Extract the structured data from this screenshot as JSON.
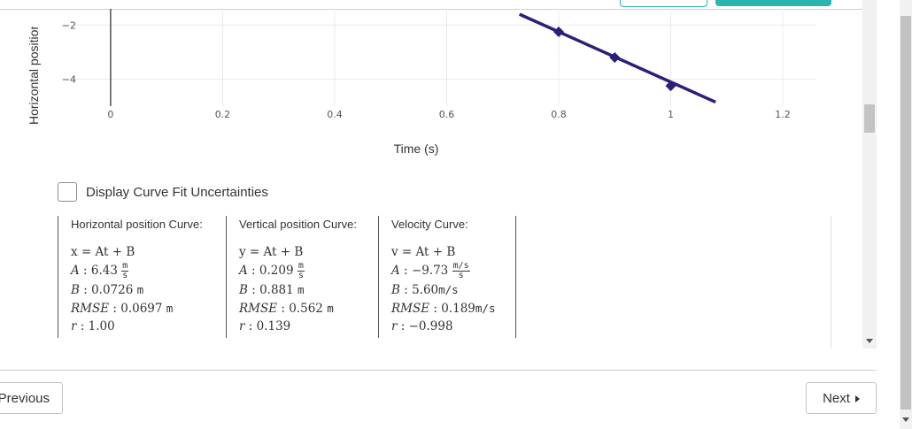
{
  "chart_data": {
    "type": "scatter",
    "xlabel": "Time (s)",
    "ylabel": "Horizontal position",
    "x_ticks": [
      "0",
      "0.2",
      "0.4",
      "0.6",
      "0.8",
      "1",
      "1.2"
    ],
    "y_ticks": [
      "−2",
      "−4"
    ],
    "xlim": [
      -0.09,
      1.26
    ],
    "ylim": [
      -5.0,
      -1.4
    ],
    "grid": true,
    "series": [
      {
        "points": [
          {
            "x": 0.8,
            "y": -2.25
          },
          {
            "x": 0.9,
            "y": -3.2
          },
          {
            "x": 1.0,
            "y": -4.25
          }
        ],
        "color": "#2a1f7a"
      }
    ],
    "fit_line": {
      "x": [
        0.73,
        1.08
      ],
      "y": [
        -1.6,
        -4.85
      ],
      "color": "#2a1f7a"
    }
  },
  "checkbox": {
    "label": "Display Curve Fit Uncertainties",
    "checked": false
  },
  "fits": [
    {
      "title": "Horizontal position Curve:",
      "equation": "x = At + B",
      "A": {
        "label": "A",
        "value": "6.43",
        "unit_num": "m",
        "unit_den": "s"
      },
      "B": {
        "label": "B",
        "value": "0.0726",
        "unit": "m"
      },
      "RMSE": {
        "label": "RMSE",
        "value": "0.0697",
        "unit": "m"
      },
      "r": {
        "label": "r",
        "value": "1.00"
      }
    },
    {
      "title": "Vertical position Curve:",
      "equation": "y = At + B",
      "A": {
        "label": "A",
        "value": "0.209",
        "unit_num": "m",
        "unit_den": "s"
      },
      "B": {
        "label": "B",
        "value": "0.881",
        "unit": "m"
      },
      "RMSE": {
        "label": "RMSE",
        "value": "0.562",
        "unit": "m"
      },
      "r": {
        "label": "r",
        "value": "0.139"
      }
    },
    {
      "title": "Velocity Curve:",
      "equation": "v = At + B",
      "A": {
        "label": "A",
        "value": "−9.73",
        "unit_num": "m/s",
        "unit_den": "s"
      },
      "B": {
        "label": "B",
        "value": "5.60",
        "unit": "m/s"
      },
      "RMSE": {
        "label": "RMSE",
        "value": "0.189",
        "unit": "m/s"
      },
      "r": {
        "label": "r",
        "value": "−0.998"
      }
    }
  ],
  "nav": {
    "previous_label": "Previous",
    "next_label": "Next"
  }
}
